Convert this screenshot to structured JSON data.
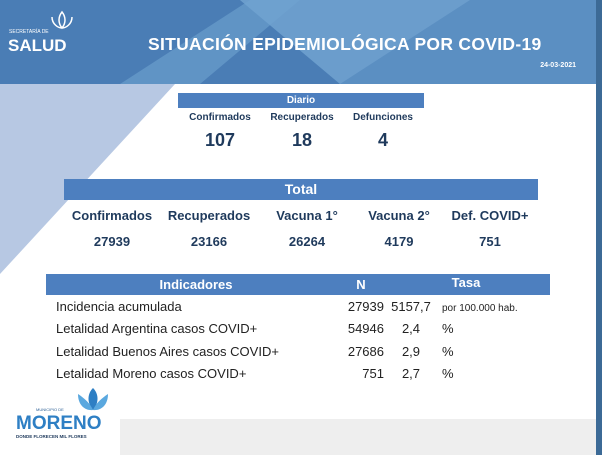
{
  "header": {
    "logo_small": "SECRETARÍA DE",
    "logo_big": "SALUD",
    "title": "SITUACIÓN EPIDEMIOLÓGICA POR COVID-19",
    "date": "24-03-2021"
  },
  "diario": {
    "title": "Diario",
    "items": [
      {
        "label": "Confirmados",
        "value": "107"
      },
      {
        "label": "Recuperados",
        "value": "18"
      },
      {
        "label": "Defunciones",
        "value": "4"
      }
    ]
  },
  "total": {
    "title": "Total",
    "items": [
      {
        "label": "Confirmados",
        "value": "27939"
      },
      {
        "label": "Recuperados",
        "value": "23166"
      },
      {
        "label": "Vacuna 1°",
        "value": "26264"
      },
      {
        "label": "Vacuna 2°",
        "value": "4179"
      },
      {
        "label": "Def. COVID+",
        "value": "751"
      }
    ]
  },
  "indicadores": {
    "headers": [
      "Indicadores",
      "N",
      "Tasa"
    ],
    "rows": [
      {
        "name": "Incidencia acumulada",
        "n": "27939",
        "tasa": "5157,7",
        "unit": "por 100.000 hab."
      },
      {
        "name": "Letalidad Argentina casos COVID+",
        "n": "54946",
        "tasa": "2,4",
        "unit": "%"
      },
      {
        "name": "Letalidad Buenos Aires casos COVID+",
        "n": "27686",
        "tasa": "2,9",
        "unit": "%"
      },
      {
        "name": "Letalidad Moreno casos COVID+",
        "n": "751",
        "tasa": "2,7",
        "unit": "%"
      }
    ]
  },
  "footer": {
    "logo_small": "MUNICIPIO DE",
    "logo_big": "MORENO",
    "logo_tagline": "DONDE FLORECEN MIL FLORES"
  },
  "colors": {
    "header": "#5b8fc2",
    "bar": "#4d7fbf",
    "text": "#1f3a5c"
  }
}
